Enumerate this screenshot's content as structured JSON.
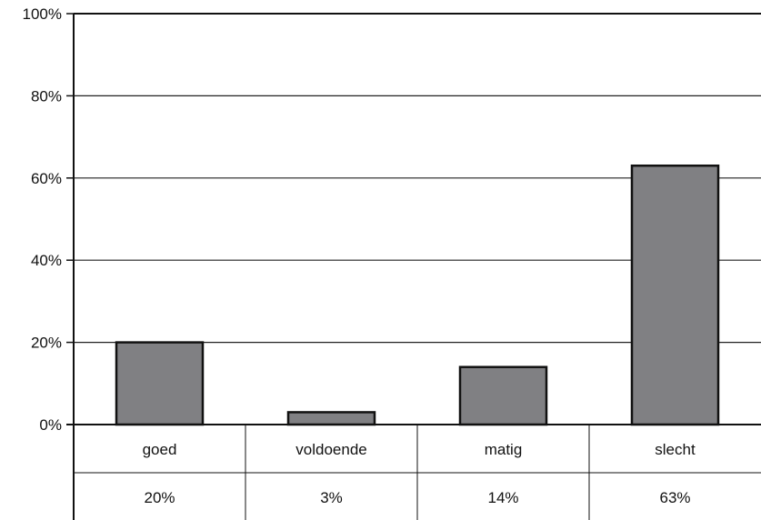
{
  "chart_data": {
    "type": "bar",
    "categories": [
      "goed",
      "voldoende",
      "matig",
      "slecht"
    ],
    "values": [
      20,
      3,
      14,
      63
    ],
    "value_labels": [
      "20%",
      "3%",
      "14%",
      "63%"
    ],
    "ylim": [
      0,
      100
    ],
    "y_ticks": [
      0,
      20,
      40,
      60,
      80,
      100
    ],
    "y_tick_labels": [
      "0%",
      "20%",
      "40%",
      "60%",
      "80%",
      "100%"
    ],
    "grid": true,
    "title": "",
    "xlabel": "",
    "ylabel": "",
    "colors": {
      "bar_fill": "#808083",
      "bar_stroke": "#111111",
      "axis": "#111111",
      "grid": "#222222"
    }
  }
}
